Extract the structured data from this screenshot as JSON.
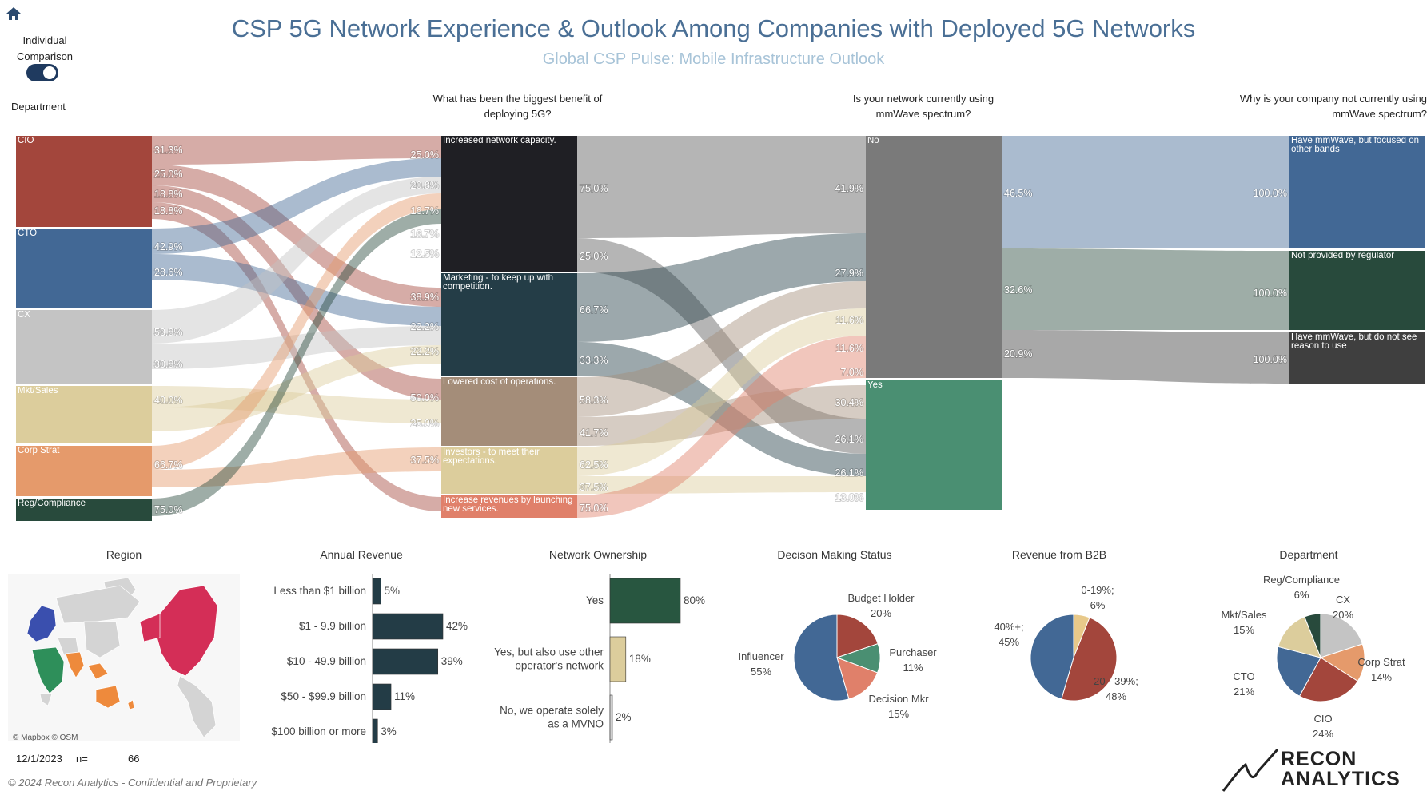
{
  "header": {
    "title": "CSP 5G Network Experience & Outlook Among Companies with Deployed 5G Networks",
    "subtitle": "Global CSP Pulse: Mobile Infrastructure Outlook"
  },
  "controls": {
    "toggle_label": "Individual Comparison",
    "toggle_on": true,
    "department_label": "Department"
  },
  "footer": {
    "date": "12/1/2023",
    "n_label": "n=",
    "n_value": "66",
    "copyright": "© 2024 Recon Analytics - Confidential and Proprietary",
    "map_attribution": "© Mapbox  © OSM",
    "logo_line1": "RECON",
    "logo_line2": "ANALYTICS"
  },
  "chart_data": [
    {
      "type": "sankey",
      "headers": {
        "benefit": "What has been the biggest benefit of deploying 5G?",
        "mmwave": "Is your network currently using mmWave spectrum?",
        "why_not": "Why is your company not currently using mmWave spectrum?"
      },
      "departments": [
        {
          "name": "CIO",
          "color": "#a3463c",
          "outflows": [
            "31.3%",
            "25.0%",
            "18.8%",
            "18.8%"
          ]
        },
        {
          "name": "CTO",
          "color": "#426895",
          "outflows": [
            "42.9%",
            "28.6%"
          ]
        },
        {
          "name": "CX",
          "color": "#c4c4c4",
          "outflows": [
            "53.8%",
            "30.8%"
          ]
        },
        {
          "name": "Mkt/Sales",
          "color": "#dccd9c",
          "outflows": [
            "40.0%"
          ]
        },
        {
          "name": "Corp Strat",
          "color": "#e59a6b",
          "outflows": [
            "66.7%"
          ]
        },
        {
          "name": "Reg/Compliance",
          "color": "#284a3c",
          "outflows": [
            "75.0%"
          ]
        }
      ],
      "benefits": [
        {
          "name": "Increased network capacity.",
          "color": "#1f1f24",
          "inflows": [
            "25.0%",
            "20.8%",
            "16.7%",
            "16.7%",
            "12.5%"
          ],
          "outflows": [
            "75.0%",
            "25.0%"
          ]
        },
        {
          "name": "Marketing - to keep up with competition.",
          "color": "#243d47",
          "inflows": [
            "38.9%",
            "22.2%",
            "22.2%"
          ],
          "outflows": [
            "66.7%",
            "33.3%"
          ]
        },
        {
          "name": "Lowered cost of operations.",
          "color": "#a48d79",
          "inflows": [
            "50.0%",
            "25.0%"
          ],
          "outflows": [
            "58.3%",
            "41.7%"
          ]
        },
        {
          "name": "Investors - to meet their expectations.",
          "color": "#dccd9c",
          "inflows": [
            "37.5%"
          ],
          "outflows": [
            "62.5%",
            "37.5%"
          ]
        },
        {
          "name": "Increase revenues by launching new services.",
          "color": "#e0806a",
          "inflows": [],
          "outflows": [
            "75.0%"
          ]
        }
      ],
      "mmwave": [
        {
          "name": "No",
          "color": "#7a7a7a",
          "inflows": [
            "41.9%",
            "27.9%",
            "11.6%",
            "11.6%",
            "7.0%"
          ],
          "outflows": [
            "46.5%",
            "32.6%",
            "20.9%"
          ]
        },
        {
          "name": "Yes",
          "color": "#4a8f72",
          "inflows": [
            "30.4%",
            "26.1%",
            "26.1%",
            "13.0%"
          ],
          "outflows": []
        }
      ],
      "reasons": [
        {
          "name": "Have mmWave, but focused on other bands",
          "color": "#426895",
          "inflow": "100.0%"
        },
        {
          "name": "Not provided by regulator",
          "color": "#284a3c",
          "inflow": "100.0%"
        },
        {
          "name": "Have mmWave, but do not see reason to use",
          "color": "#3f3f3f",
          "inflow": "100.0%"
        }
      ]
    },
    {
      "type": "map",
      "title": "Region",
      "highlighted_regions": [
        {
          "region": "North America",
          "color": "#d42e57"
        },
        {
          "region": "Europe",
          "color": "#3a4fae"
        },
        {
          "region": "Africa",
          "color": "#2e8f5a"
        },
        {
          "region": "South Asia",
          "color": "#ee8a3c"
        },
        {
          "region": "Oceania",
          "color": "#ee8a3c"
        }
      ]
    },
    {
      "type": "bar",
      "title": "Annual Revenue",
      "orientation": "horizontal",
      "categories": [
        "Less than $1 billion",
        "$1 - 9.9 billion",
        "$10 - 49.9 billion",
        "$50 - $99.9 billion",
        "$100 billion or more"
      ],
      "values": [
        5,
        42,
        39,
        11,
        3
      ],
      "labels": [
        "5%",
        "42%",
        "39%",
        "11%",
        "3%"
      ],
      "color": "#233c46"
    },
    {
      "type": "bar",
      "title": "Network Ownership",
      "orientation": "horizontal",
      "categories": [
        "Yes",
        "Yes, but also use other operator's network",
        "No, we operate solely as a MVNO"
      ],
      "values": [
        80,
        18,
        2
      ],
      "labels": [
        "80%",
        "18%",
        "2%"
      ],
      "colors": [
        "#285640",
        "#dccd9c",
        "#cfcfcf"
      ]
    },
    {
      "type": "pie",
      "title": "Decison Making Status",
      "slices": [
        {
          "label": "Budget Holder",
          "value": 20,
          "display": "20%",
          "color": "#a3463c"
        },
        {
          "label": "Purchaser",
          "value": 11,
          "display": "11%",
          "color": "#4a8f72"
        },
        {
          "label": "Decision Mkr",
          "value": 15,
          "display": "15%",
          "color": "#e0806a"
        },
        {
          "label": "Influencer",
          "value": 55,
          "display": "55%",
          "color": "#426895"
        }
      ]
    },
    {
      "type": "pie",
      "title": "Revenue from B2B",
      "slices": [
        {
          "label": "0-19%;",
          "value": 6,
          "display": "6%",
          "color": "#e8c98a"
        },
        {
          "label": "20 - 39%;",
          "value": 48,
          "display": "48%",
          "color": "#a3463c"
        },
        {
          "label": "40%+;",
          "value": 45,
          "display": "45%",
          "color": "#426895"
        }
      ]
    },
    {
      "type": "pie",
      "title": "Department",
      "slices": [
        {
          "label": "CX",
          "value": 20,
          "display": "20%",
          "color": "#c4c4c4"
        },
        {
          "label": "Corp Strat",
          "value": 14,
          "display": "14%",
          "color": "#e59a6b"
        },
        {
          "label": "CIO",
          "value": 24,
          "display": "24%",
          "color": "#a3463c"
        },
        {
          "label": "CTO",
          "value": 21,
          "display": "21%",
          "color": "#426895"
        },
        {
          "label": "Mkt/Sales",
          "value": 15,
          "display": "15%",
          "color": "#dccd9c"
        },
        {
          "label": "Reg/Compliance",
          "value": 6,
          "display": "6%",
          "color": "#284a3c"
        }
      ]
    }
  ]
}
